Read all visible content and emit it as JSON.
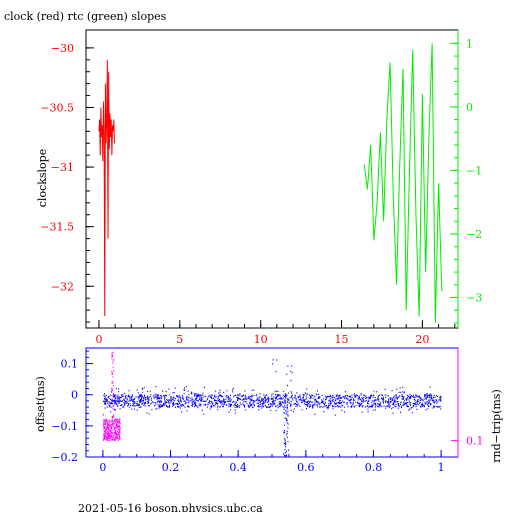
{
  "colors": {
    "clock": "#ff0000",
    "rtc": "#00ee00",
    "offset": "#0000ff",
    "rtt": "#ff00ff",
    "axes": "#000000"
  },
  "footer": "2021-05-16  boson.physics.ubc.ca",
  "chart_data": [
    {
      "type": "line",
      "title": "clock (red) rtc (green) slopes",
      "ylabel": "clockslope",
      "xlim": [
        -0.8,
        22.2
      ],
      "ylim": [
        -32.35,
        -29.85
      ],
      "y2lim": [
        -3.48,
        1.21
      ],
      "x_ticks": [
        0,
        5,
        10,
        15,
        20
      ],
      "y_ticks": [
        -30,
        -30.5,
        -31,
        -31.5,
        -32
      ],
      "y2_ticks": [
        1,
        0,
        -1,
        -2,
        -3
      ],
      "grid": false,
      "series": [
        {
          "name": "clock",
          "axis": "left",
          "x": [
            0.0,
            0.04,
            0.08,
            0.12,
            0.16,
            0.2,
            0.24,
            0.28,
            0.32,
            0.36,
            0.4,
            0.44,
            0.48,
            0.52,
            0.56,
            0.6,
            0.64,
            0.68,
            0.72,
            0.76,
            0.8,
            0.84,
            0.88,
            0.92,
            0.96
          ],
          "y": [
            -30.7,
            -30.6,
            -30.9,
            -30.5,
            -30.75,
            -30.65,
            -30.95,
            -30.45,
            -30.7,
            -32.25,
            -30.3,
            -30.8,
            -30.6,
            -30.1,
            -31.6,
            -30.2,
            -30.85,
            -30.55,
            -30.75,
            -30.6,
            -30.9,
            -30.65,
            -30.7,
            -30.6,
            -30.8
          ]
        },
        {
          "name": "rtc",
          "axis": "right",
          "x": [
            16.4,
            16.6,
            16.8,
            17.0,
            17.2,
            17.4,
            17.6,
            17.8,
            18.0,
            18.2,
            18.4,
            18.6,
            18.8,
            19.0,
            19.2,
            19.4,
            19.6,
            19.8,
            20.0,
            20.2,
            20.4,
            20.6,
            20.8,
            21.0,
            21.2
          ],
          "y": [
            -0.9,
            -1.3,
            -0.6,
            -2.1,
            -1.5,
            -0.4,
            -1.8,
            -0.2,
            0.7,
            -1.4,
            -2.8,
            -0.9,
            0.6,
            -3.2,
            -1.0,
            0.9,
            -1.7,
            -3.3,
            0.2,
            -2.6,
            -0.5,
            1.0,
            -3.4,
            -1.2,
            -2.9
          ]
        }
      ]
    },
    {
      "type": "scatter",
      "ylabel": "offset(ms)",
      "y2label": "rnd−trip(ms)",
      "xlim": [
        -0.05,
        1.05
      ],
      "ylim": [
        -0.2,
        0.15
      ],
      "y2lim": [
        0.085,
        0.185
      ],
      "x_ticks": [
        0,
        0.2,
        0.4,
        0.6,
        0.8,
        1
      ],
      "y_ticks": [
        0.1,
        0,
        -0.1,
        -0.2
      ],
      "y2_ticks": [
        0.1
      ],
      "grid": false,
      "series": [
        {
          "name": "offset",
          "axis": "left",
          "x_range": [
            0,
            1
          ],
          "typical_range": [
            -0.04,
            0.0
          ],
          "min": -0.2,
          "max": 0.12,
          "dip_at_x": 0.54
        },
        {
          "name": "rnd-trip",
          "axis": "right",
          "x_range": [
            0,
            0.05
          ],
          "typical_range": [
            0.1,
            0.12
          ],
          "max": 0.185
        }
      ]
    }
  ]
}
